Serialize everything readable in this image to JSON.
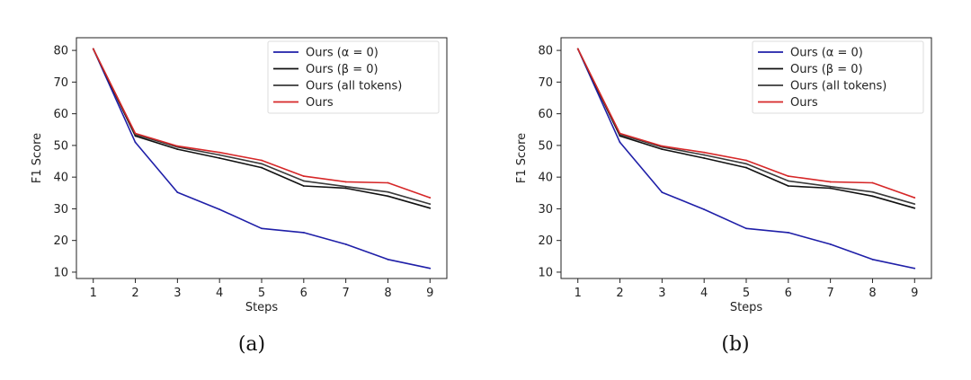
{
  "chart_data": [
    {
      "type": "line",
      "caption": "(a)",
      "xlabel": "Steps",
      "ylabel": "F1 Score",
      "x": [
        1,
        2,
        3,
        4,
        5,
        6,
        7,
        8,
        9
      ],
      "xlim": [
        0.6,
        9.4
      ],
      "ylim": [
        8,
        84
      ],
      "yticks": [
        10,
        20,
        30,
        40,
        50,
        60,
        70,
        80
      ],
      "legend_position": "top-right",
      "grid": false,
      "series": [
        {
          "name": "Ours (α = 0)",
          "color": "#1f1fa8",
          "values": [
            80.5,
            51.0,
            35.2,
            29.8,
            23.8,
            22.5,
            18.8,
            14.0,
            11.2
          ]
        },
        {
          "name": "Ours (β = 0)",
          "color": "#111111",
          "values": [
            80.5,
            53.0,
            48.8,
            46.0,
            43.0,
            37.2,
            36.5,
            34.0,
            30.2
          ]
        },
        {
          "name": "Ours (all tokens)",
          "color": "#3a3a3a",
          "values": [
            80.5,
            53.5,
            49.5,
            47.0,
            44.2,
            38.8,
            37.0,
            35.3,
            31.5
          ]
        },
        {
          "name": "Ours",
          "color": "#d62728",
          "values": [
            80.5,
            53.8,
            49.8,
            47.8,
            45.3,
            40.3,
            38.5,
            38.2,
            33.5
          ]
        }
      ]
    },
    {
      "type": "line",
      "caption": "(b)",
      "xlabel": "Steps",
      "ylabel": "F1 Score",
      "x": [
        1,
        2,
        3,
        4,
        5,
        6,
        7,
        8,
        9
      ],
      "xlim": [
        0.6,
        9.4
      ],
      "ylim": [
        8,
        84
      ],
      "yticks": [
        10,
        20,
        30,
        40,
        50,
        60,
        70,
        80
      ],
      "legend_position": "top-right",
      "grid": false,
      "series": [
        {
          "name": "Ours (α = 0)",
          "color": "#1f1fa8",
          "values": [
            80.5,
            51.0,
            35.2,
            29.8,
            23.8,
            22.5,
            18.8,
            14.0,
            11.2
          ]
        },
        {
          "name": "Ours (β = 0)",
          "color": "#111111",
          "values": [
            80.5,
            53.0,
            48.8,
            46.0,
            43.0,
            37.2,
            36.5,
            34.0,
            30.2
          ]
        },
        {
          "name": "Ours (all tokens)",
          "color": "#3a3a3a",
          "values": [
            80.5,
            53.5,
            49.5,
            47.0,
            44.2,
            38.8,
            37.0,
            35.3,
            31.5
          ]
        },
        {
          "name": "Ours",
          "color": "#d62728",
          "values": [
            80.5,
            53.8,
            49.8,
            47.8,
            45.3,
            40.3,
            38.5,
            38.2,
            33.5
          ]
        }
      ]
    }
  ]
}
